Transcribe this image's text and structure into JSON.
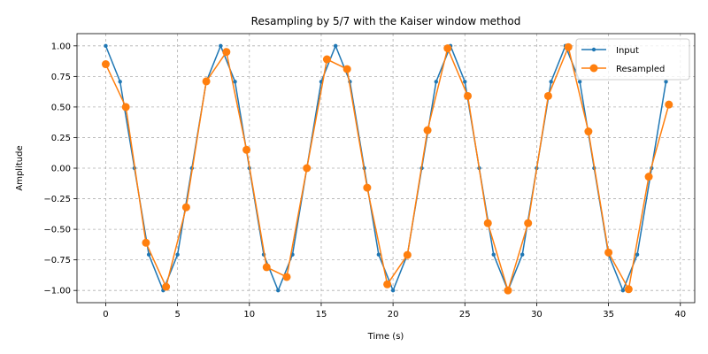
{
  "chart_data": {
    "type": "line",
    "title": "Resampling by 5/7 with the Kaiser window method",
    "xlabel": "Time (s)",
    "ylabel": "Amplitude",
    "xlim": [
      -2,
      41
    ],
    "ylim": [
      -1.1,
      1.1
    ],
    "xticks": [
      0,
      5,
      10,
      15,
      20,
      25,
      30,
      35,
      40
    ],
    "xtick_labels": [
      "0",
      "5",
      "10",
      "15",
      "20",
      "25",
      "30",
      "35",
      "40"
    ],
    "yticks": [
      1.0,
      0.75,
      0.5,
      0.25,
      0.0,
      -0.25,
      -0.5,
      -0.75,
      -1.0
    ],
    "ytick_labels": [
      "1.00",
      "0.75",
      "0.50",
      "0.25",
      "0.00",
      "−0.25",
      "−0.50",
      "−0.75",
      "−1.00"
    ],
    "grid": true,
    "legend_position": "top-right",
    "series": [
      {
        "name": "Input",
        "color": "#1f77b4",
        "marker": "small-dot",
        "x": [
          0,
          1,
          2,
          3,
          4,
          5,
          6,
          7,
          8,
          9,
          10,
          11,
          12,
          13,
          14,
          15,
          16,
          17,
          18,
          19,
          20,
          21,
          22,
          23,
          24,
          25,
          26,
          27,
          28,
          29,
          30,
          31,
          32,
          33,
          34,
          35,
          36,
          37,
          38,
          39
        ],
        "y": [
          1.0,
          0.7071,
          0.0,
          -0.7071,
          -1.0,
          -0.7071,
          0.0,
          0.7071,
          1.0,
          0.7071,
          0.0,
          -0.7071,
          -1.0,
          -0.7071,
          0.0,
          0.7071,
          1.0,
          0.7071,
          0.0,
          -0.7071,
          -1.0,
          -0.7071,
          0.0,
          0.7071,
          1.0,
          0.7071,
          0.0,
          -0.7071,
          -1.0,
          -0.7071,
          0.0,
          0.7071,
          1.0,
          0.7071,
          0.0,
          -0.7071,
          -1.0,
          -0.7071,
          0.0,
          0.7071
        ]
      },
      {
        "name": "Resampled",
        "color": "#ff7f0e",
        "marker": "circle",
        "x": [
          0,
          1.4,
          2.8,
          4.2,
          5.6,
          7.0,
          8.4,
          9.8,
          11.2,
          12.6,
          14.0,
          15.4,
          16.8,
          18.2,
          19.6,
          21.0,
          22.4,
          23.8,
          25.2,
          26.6,
          28.0,
          29.4,
          30.8,
          32.2,
          33.6,
          35.0,
          36.4,
          37.8,
          39.2
        ],
        "y": [
          0.85,
          0.5,
          -0.61,
          -0.97,
          -0.32,
          0.71,
          0.95,
          0.15,
          -0.81,
          -0.89,
          0.0,
          0.89,
          0.81,
          -0.16,
          -0.95,
          -0.71,
          0.31,
          0.98,
          0.59,
          -0.45,
          -1.0,
          -0.45,
          0.59,
          0.99,
          0.3,
          -0.69,
          -0.99,
          -0.07,
          0.52
        ]
      }
    ]
  }
}
